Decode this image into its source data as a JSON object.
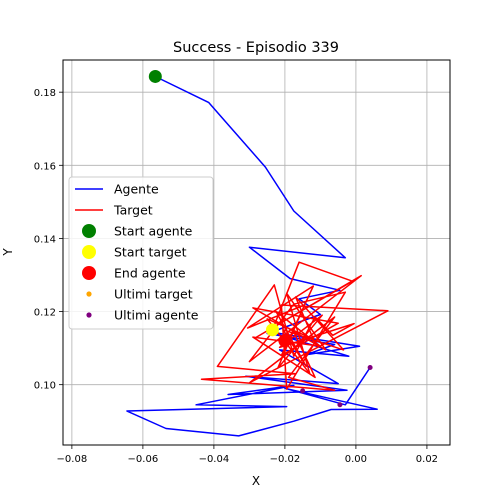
{
  "chart_data": {
    "type": "line",
    "title": "Success - Episodio 339",
    "xlabel": "X",
    "ylabel": "Y",
    "xlim": [
      -0.0825,
      0.0265
    ],
    "ylim": [
      0.0835,
      0.1888
    ],
    "xticks": [
      -0.08,
      -0.06,
      -0.04,
      -0.02,
      0.0,
      0.02
    ],
    "xtick_labels": [
      "−0.08",
      "−0.06",
      "−0.04",
      "−0.02",
      "0.00",
      "0.02"
    ],
    "yticks": [
      0.1,
      0.12,
      0.14,
      0.16,
      0.18
    ],
    "ytick_labels": [
      "0.10",
      "0.12",
      "0.14",
      "0.16",
      "0.18"
    ],
    "grid": true,
    "legend_position": "center-left",
    "legend": [
      {
        "label": "Agente",
        "kind": "line",
        "color": "#0000ff"
      },
      {
        "label": "Target",
        "kind": "line",
        "color": "#ff0000"
      },
      {
        "label": "Start agente",
        "kind": "marker",
        "color": "#008000",
        "size": "large"
      },
      {
        "label": "Start target",
        "kind": "marker",
        "color": "#ffff00",
        "size": "large"
      },
      {
        "label": "End agente",
        "kind": "marker",
        "color": "#ff0000",
        "size": "large"
      },
      {
        "label": "Ultimi target",
        "kind": "marker",
        "color": "#ffa500",
        "size": "small"
      },
      {
        "label": "Ultimi agente",
        "kind": "marker",
        "color": "#800080",
        "size": "small"
      }
    ],
    "series": [
      {
        "name": "Agente",
        "color": "#0000ff",
        "x": [
          -0.0565,
          -0.0415,
          -0.0255,
          -0.0175,
          -0.003,
          -0.03,
          -0.0185,
          -0.0045,
          -0.016,
          -0.01,
          -0.025,
          -0.006,
          -0.014,
          0.001,
          -0.0245,
          -0.002,
          -0.0215,
          -0.005,
          -0.031,
          -0.0025,
          -0.036,
          -0.0175,
          -0.045,
          -0.0195,
          -0.0645,
          -0.0535,
          -0.033,
          -0.0175,
          -0.007,
          0.006,
          -0.02,
          -0.003,
          0.004
        ],
        "y": [
          0.1843,
          0.1772,
          0.1595,
          0.1475,
          0.1347,
          0.1376,
          0.129,
          0.1258,
          0.1235,
          0.1192,
          0.114,
          0.111,
          0.1082,
          0.1105,
          0.1145,
          0.1078,
          0.1095,
          0.1003,
          0.1023,
          0.0985,
          0.0973,
          0.0998,
          0.0945,
          0.094,
          0.0928,
          0.088,
          0.086,
          0.09,
          0.0932,
          0.0933,
          0.099,
          0.0945,
          0.1047
        ]
      },
      {
        "name": "Target",
        "color": "#ff0000",
        "x": [
          -0.0235,
          -0.016,
          -0.001,
          -0.028,
          0.0015,
          -0.03,
          -0.0175,
          -0.003,
          -0.0195,
          -0.021,
          0.009,
          -0.03,
          -0.006,
          -0.019,
          -0.006,
          -0.0435,
          -0.017,
          -0.039,
          -0.023,
          -0.0175,
          -0.0115,
          -0.0065,
          -0.0005,
          -0.0215,
          -0.0095,
          -0.022,
          -0.0145,
          -0.0305,
          -0.012,
          -0.021,
          -0.005,
          -0.029,
          -0.0085,
          -0.0195,
          -0.013,
          -0.025,
          -0.012,
          -0.017,
          -0.0035,
          -0.0205,
          -0.014,
          -0.0225,
          -0.01,
          -0.029,
          -0.0115,
          -0.018
        ],
        "y": [
          0.115,
          0.1335,
          0.1283,
          0.113,
          0.1298,
          0.1063,
          0.122,
          0.1253,
          0.0988,
          0.1218,
          0.1202,
          0.1005,
          0.1185,
          0.102,
          0.0985,
          0.1015,
          0.103,
          0.105,
          0.1273,
          0.1078,
          0.1185,
          0.1135,
          0.1167,
          0.1102,
          0.119,
          0.1045,
          0.1218,
          0.1155,
          0.127,
          0.108,
          0.1168,
          0.121,
          0.1095,
          0.125,
          0.103,
          0.118,
          0.1125,
          0.124,
          0.1095,
          0.115,
          0.105,
          0.12,
          0.1105,
          0.113,
          0.102,
          0.1155
        ]
      }
    ],
    "points": {
      "start_agente": {
        "x": -0.0565,
        "y": 0.1843,
        "color": "#008000"
      },
      "start_target": {
        "x": -0.0235,
        "y": 0.115,
        "color": "#ffff00"
      },
      "end_agente": {
        "x": -0.02,
        "y": 0.112,
        "color": "#ff0000"
      },
      "ultimi_target": {
        "color": "#ffa500",
        "x": [],
        "y": []
      },
      "ultimi_agente": {
        "color": "#800080",
        "x": [
          -0.015,
          -0.0045,
          0.004
        ],
        "y": [
          0.0983,
          0.0945,
          0.1047
        ]
      }
    }
  }
}
